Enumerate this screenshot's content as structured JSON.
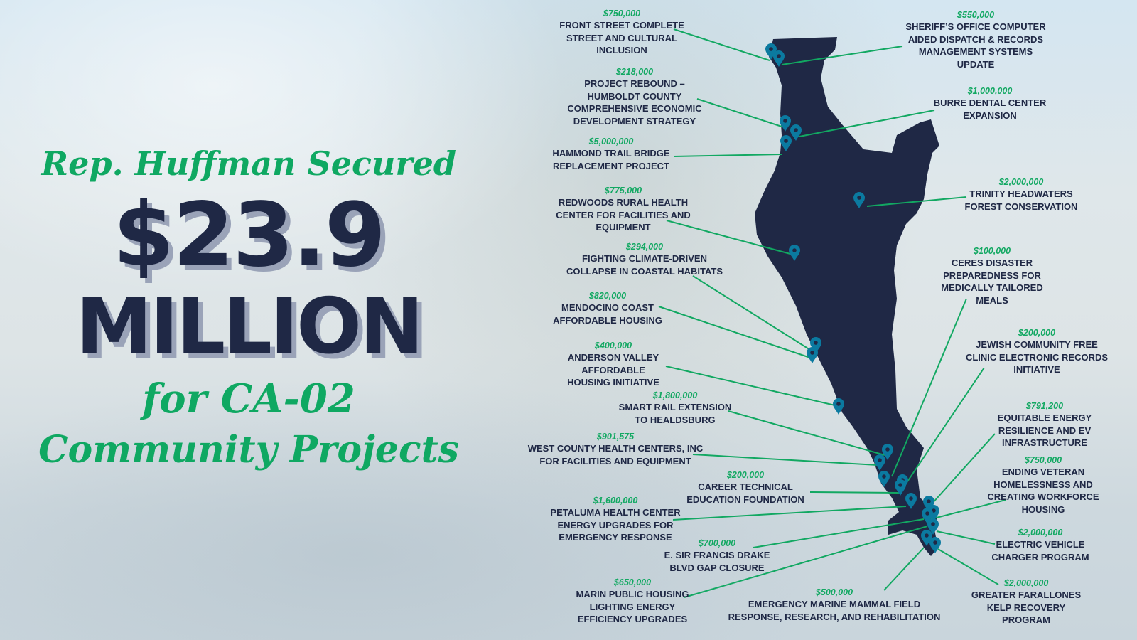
{
  "headline": {
    "line1": "Rep. Huffman Secured",
    "amount": "$23.9",
    "unit": "MILLION",
    "line4": "for CA-02",
    "line5": "Community Projects"
  },
  "colors": {
    "navy": "#1f2845",
    "green": "#12a862",
    "pin": "#0b7aa0"
  },
  "map": {
    "region": "CA-02 district",
    "pin_icon": "map-pin-icon"
  },
  "projects": [
    {
      "amount": "$750,000",
      "name": "FRONT STREET COMPLETE\nSTREET AND CULTURAL\nINCLUSION"
    },
    {
      "amount": "$218,000",
      "name": "PROJECT REBOUND –\nHUMBOLDT COUNTY\nCOMPREHENSIVE ECONOMIC\nDEVELOPMENT STRATEGY"
    },
    {
      "amount": "$5,000,000",
      "name": "HAMMOND TRAIL BRIDGE\nREPLACEMENT PROJECT"
    },
    {
      "amount": "$775,000",
      "name": "REDWOODS RURAL HEALTH\nCENTER FOR FACILITIES AND\nEQUIPMENT"
    },
    {
      "amount": "$294,000",
      "name": "FIGHTING CLIMATE-DRIVEN\nCOLLAPSE IN COASTAL HABITATS"
    },
    {
      "amount": "$820,000",
      "name": "MENDOCINO COAST\nAFFORDABLE HOUSING"
    },
    {
      "amount": "$400,000",
      "name": "ANDERSON VALLEY\nAFFORDABLE\nHOUSING INITIATIVE"
    },
    {
      "amount": "$1,800,000",
      "name": "SMART RAIL EXTENSION\nTO HEALDSBURG"
    },
    {
      "amount": "$901,575",
      "name": "WEST COUNTY HEALTH CENTERS, INC\nFOR FACILITIES AND EQUIPMENT"
    },
    {
      "amount": "$200,000",
      "name": "CAREER TECHNICAL\nEDUCATION FOUNDATION"
    },
    {
      "amount": "$1,600,000",
      "name": "PETALUMA HEALTH CENTER\nENERGY UPGRADES FOR\nEMERGENCY RESPONSE"
    },
    {
      "amount": "$700,000",
      "name": "E. SIR FRANCIS DRAKE\nBLVD GAP CLOSURE"
    },
    {
      "amount": "$650,000",
      "name": "MARIN PUBLIC HOUSING\nLIGHTING ENERGY\nEFFICIENCY UPGRADES"
    },
    {
      "amount": "$500,000",
      "name": "EMERGENCY MARINE MAMMAL FIELD\nRESPONSE, RESEARCH, AND REHABILITATION"
    },
    {
      "amount": "$550,000",
      "name": "SHERIFF’S OFFICE COMPUTER\nAIDED DISPATCH & RECORDS\nMANAGEMENT SYSTEMS\nUPDATE"
    },
    {
      "amount": "$1,000,000",
      "name": "BURRE DENTAL CENTER\nEXPANSION"
    },
    {
      "amount": "$2,000,000",
      "name": "TRINITY HEADWATERS\nFOREST CONSERVATION"
    },
    {
      "amount": "$100,000",
      "name": "CERES DISASTER\nPREPAREDNESS FOR\nMEDICALLY TAILORED\nMEALS"
    },
    {
      "amount": "$200,000",
      "name": "JEWISH COMMUNITY FREE\nCLINIC ELECTRONIC RECORDS\nINITIATIVE"
    },
    {
      "amount": "$791,200",
      "name": "EQUITABLE ENERGY\nRESILIENCE AND EV\nINFRASTRUCTURE"
    },
    {
      "amount": "$750,000",
      "name": "ENDING VETERAN\nHOMELESSNESS AND\nCREATING WORKFORCE\nHOUSING"
    },
    {
      "amount": "$2,000,000",
      "name": "ELECTRIC VEHICLE\nCHARGER PROGRAM"
    },
    {
      "amount": "$2,000,000",
      "name": "GREATER FARALLONES\nKELP RECOVERY\nPROGRAM"
    }
  ]
}
